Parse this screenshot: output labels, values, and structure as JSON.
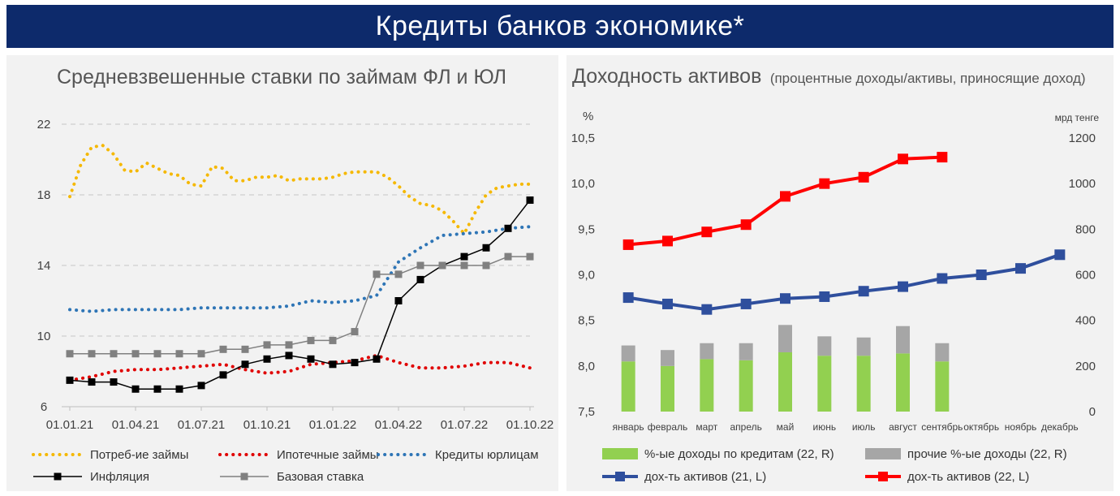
{
  "header": {
    "title": "Кредиты банков экономике*"
  },
  "left_panel": {
    "title": "Средневзвешенные ставки по займам ФЛ и ЮЛ"
  },
  "right_panel": {
    "title": "Доходность активов",
    "subtitle": "(процентные доходы/активы, приносящие доход)"
  },
  "chart_data": [
    {
      "type": "line",
      "title": "Средневзвешенные ставки по займам ФЛ и ЮЛ",
      "xlabel": "",
      "ylabel": "",
      "ylim": [
        6,
        22
      ],
      "yticks": [
        "6",
        "10",
        "14",
        "18",
        "22"
      ],
      "xticks": [
        "01.01.21",
        "01.04.21",
        "01.07.21",
        "01.10.21",
        "01.01.22",
        "01.04.22",
        "01.07.22",
        "01.10.22"
      ],
      "x_range": [
        0,
        21
      ],
      "grid": true,
      "legend_position": "bottom",
      "series": [
        {
          "name": "Потреб-ие займы",
          "style": "dotted",
          "color": "#f5b800",
          "x": [
            0,
            0.5,
            1,
            1.5,
            2,
            2.5,
            3,
            3.5,
            4,
            4.5,
            5,
            5.5,
            6,
            6.5,
            7,
            7.5,
            8,
            8.5,
            9,
            9.5,
            10,
            10.5,
            11,
            11.5,
            12,
            12.5,
            13,
            13.5,
            14,
            14.5,
            15,
            15.5,
            16,
            16.5,
            17,
            17.5,
            18,
            18.5,
            19,
            19.5,
            20,
            20.5,
            21
          ],
          "values": [
            17.9,
            19.7,
            20.7,
            20.8,
            20.3,
            19.4,
            19.3,
            19.8,
            19.5,
            19.2,
            19.1,
            18.6,
            18.5,
            19.6,
            19.5,
            18.8,
            18.8,
            19.0,
            19.0,
            19.1,
            18.8,
            18.9,
            18.9,
            18.9,
            19.0,
            19.2,
            19.3,
            19.3,
            19.3,
            19.0,
            18.5,
            17.9,
            17.5,
            17.4,
            17.1,
            16.5,
            15.8,
            17.0,
            18.0,
            18.4,
            18.5,
            18.6,
            18.6
          ]
        },
        {
          "name": "Ипотечные займы",
          "style": "dotted",
          "color": "#e00000",
          "x": [
            0,
            1,
            2,
            3,
            4,
            5,
            6,
            7,
            8,
            9,
            10,
            11,
            12,
            13,
            14,
            15,
            16,
            17,
            18,
            19,
            20,
            21
          ],
          "values": [
            7.5,
            7.7,
            8.0,
            8.1,
            8.1,
            8.2,
            8.3,
            8.4,
            8.1,
            7.9,
            8.0,
            8.4,
            8.5,
            8.6,
            8.9,
            8.5,
            8.2,
            8.2,
            8.3,
            8.5,
            8.5,
            8.2
          ]
        },
        {
          "name": "Кредиты юрлицам",
          "style": "dotted",
          "color": "#2e75b6",
          "x": [
            0,
            1,
            2,
            3,
            4,
            5,
            6,
            7,
            8,
            9,
            10,
            11,
            12,
            13,
            14,
            15,
            16,
            17,
            18,
            19,
            20,
            21
          ],
          "values": [
            11.5,
            11.4,
            11.5,
            11.5,
            11.5,
            11.5,
            11.6,
            11.6,
            11.6,
            11.6,
            11.7,
            12.0,
            11.9,
            12.0,
            12.3,
            14.2,
            15.0,
            15.7,
            15.8,
            15.9,
            16.1,
            16.2
          ]
        },
        {
          "name": "Инфляция",
          "style": "solid-square-black",
          "color": "#000000",
          "x": [
            0,
            1,
            2,
            3,
            4,
            5,
            6,
            7,
            8,
            9,
            10,
            11,
            12,
            13,
            14,
            15,
            16,
            17,
            18,
            19,
            20,
            21
          ],
          "values": [
            7.5,
            7.4,
            7.4,
            7.0,
            7.0,
            7.0,
            7.2,
            7.8,
            8.4,
            8.7,
            8.9,
            8.7,
            8.4,
            8.5,
            8.7,
            12.0,
            13.2,
            14.0,
            14.5,
            15.0,
            16.1,
            17.7
          ]
        },
        {
          "name": "Базовая ставка",
          "style": "solid-square-grey",
          "color": "#808080",
          "x": [
            0,
            1,
            2,
            3,
            4,
            5,
            6,
            7,
            8,
            9,
            10,
            11,
            12,
            13,
            14,
            15,
            16,
            17,
            18,
            19,
            20,
            21
          ],
          "values": [
            9.0,
            9.0,
            9.0,
            9.0,
            9.0,
            9.0,
            9.0,
            9.25,
            9.25,
            9.5,
            9.5,
            9.75,
            9.75,
            10.25,
            13.5,
            13.5,
            14.0,
            14.0,
            14.0,
            14.0,
            14.5,
            14.5
          ]
        }
      ]
    },
    {
      "type": "bar+line",
      "title": "Доходность активов",
      "ylabel_left": "%",
      "ylabel_right": "мрд тенге",
      "ylim_left": [
        7.5,
        10.5
      ],
      "ylim_right": [
        0,
        1200
      ],
      "yticks_left": [
        "7,5",
        "8,0",
        "8,5",
        "9,0",
        "9,5",
        "10,0",
        "10,5"
      ],
      "yticks_right": [
        "0",
        "200",
        "400",
        "600",
        "800",
        "1000",
        "1200"
      ],
      "categories": [
        "январь",
        "февраль",
        "март",
        "апрель",
        "май",
        "июнь",
        "июль",
        "август",
        "сентябрь",
        "октябрь",
        "ноябрь",
        "декабрь"
      ],
      "grid": false,
      "legend_position": "bottom",
      "series": [
        {
          "name": "%-ые доходы по кредитам (22, R)",
          "kind": "stacked-bar",
          "axis": "right",
          "color": "#92d050",
          "values": [
            220,
            200,
            230,
            225,
            260,
            245,
            245,
            255,
            220,
            null,
            null,
            null
          ]
        },
        {
          "name": "прочие %-ые доходы (22, R)",
          "kind": "stacked-bar",
          "axis": "right",
          "color": "#a6a6a6",
          "values": [
            70,
            70,
            70,
            75,
            120,
            85,
            80,
            120,
            80,
            null,
            null,
            null
          ]
        },
        {
          "name": "дох-ть активов (21, L)",
          "kind": "line",
          "axis": "left",
          "color": "#2f4f9d",
          "values": [
            8.75,
            8.68,
            8.62,
            8.68,
            8.74,
            8.76,
            8.82,
            8.87,
            8.96,
            9.0,
            9.07,
            9.22
          ]
        },
        {
          "name": "дох-ть активов (22, L)",
          "kind": "line",
          "axis": "left",
          "color": "#ff0000",
          "values": [
            9.33,
            9.37,
            9.47,
            9.55,
            9.86,
            10.0,
            10.07,
            10.27,
            10.29,
            null,
            null,
            null
          ]
        }
      ]
    }
  ]
}
